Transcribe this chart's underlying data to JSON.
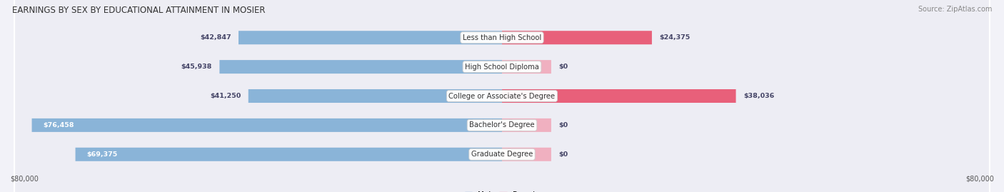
{
  "title": "EARNINGS BY SEX BY EDUCATIONAL ATTAINMENT IN MOSIER",
  "source": "Source: ZipAtlas.com",
  "categories": [
    "Less than High School",
    "High School Diploma",
    "College or Associate's Degree",
    "Bachelor's Degree",
    "Graduate Degree"
  ],
  "male_values": [
    42847,
    45938,
    41250,
    76458,
    69375
  ],
  "female_values": [
    24375,
    0,
    38036,
    0,
    0
  ],
  "female_stub_values": [
    24375,
    8000,
    38036,
    8000,
    8000
  ],
  "max_value": 80000,
  "male_color": "#8ab4d8",
  "female_color_full": "#e8607a",
  "female_color_stub": "#f0b0c0",
  "row_bg_even": "#ededf4",
  "row_bg_odd": "#e4e4ee",
  "background_color": "#f2f2f8",
  "legend_male_color": "#8ab4d8",
  "legend_female_color": "#f0a8bc",
  "axis_label": "$80,000",
  "figsize": [
    14.06,
    2.69
  ],
  "dpi": 100
}
